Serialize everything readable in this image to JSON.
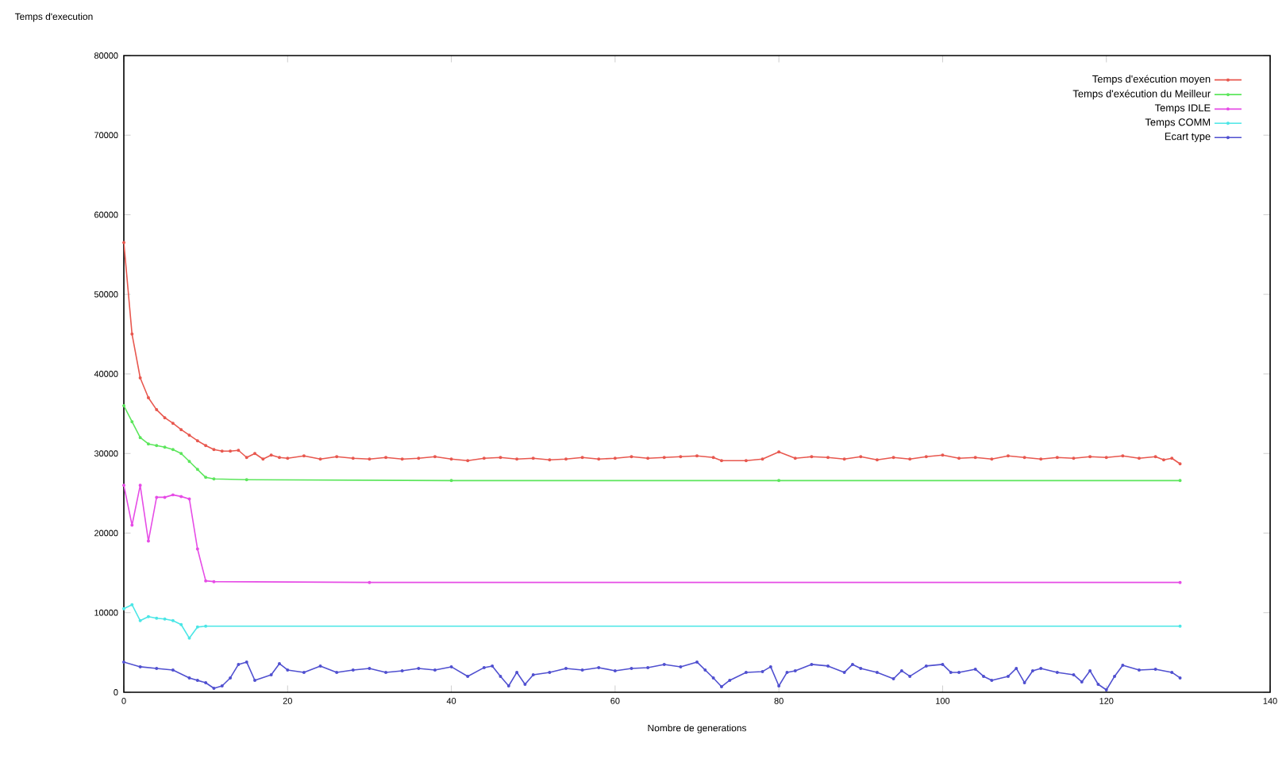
{
  "chart_data": {
    "type": "line",
    "ylabel": "Temps d'execution",
    "xlabel": "Nombre de generations",
    "xlim": [
      0,
      140
    ],
    "ylim": [
      0,
      80000
    ],
    "xticks": [
      0,
      20,
      40,
      60,
      80,
      100,
      120,
      140
    ],
    "yticks": [
      0,
      10000,
      20000,
      30000,
      40000,
      50000,
      60000,
      70000,
      80000
    ],
    "legend": "top right",
    "marker": "circle",
    "grid": false,
    "line_style": "solid",
    "series": [
      {
        "name": "Temps d'exécution moyen",
        "color": "#e8584f",
        "x": [
          0,
          1,
          2,
          3,
          4,
          5,
          6,
          7,
          8,
          9,
          10,
          11,
          12,
          13,
          14,
          15,
          16,
          17,
          18,
          19,
          20,
          22,
          24,
          26,
          28,
          30,
          32,
          34,
          36,
          38,
          40,
          42,
          44,
          46,
          48,
          50,
          52,
          54,
          56,
          58,
          60,
          62,
          64,
          66,
          68,
          70,
          72,
          73,
          76,
          78,
          80,
          82,
          84,
          86,
          88,
          90,
          92,
          94,
          96,
          98,
          100,
          102,
          104,
          106,
          108,
          110,
          112,
          114,
          116,
          118,
          120,
          122,
          124,
          126,
          127,
          128,
          129
        ],
        "values": [
          56500,
          45000,
          39500,
          37000,
          35500,
          34500,
          33800,
          33000,
          32300,
          31600,
          31000,
          30500,
          30300,
          30300,
          30400,
          29500,
          30000,
          29300,
          29800,
          29500,
          29400,
          29700,
          29300,
          29600,
          29400,
          29300,
          29500,
          29300,
          29400,
          29600,
          29300,
          29100,
          29400,
          29500,
          29300,
          29400,
          29200,
          29300,
          29500,
          29300,
          29400,
          29600,
          29400,
          29500,
          29600,
          29700,
          29500,
          29100,
          29100,
          29300,
          30200,
          29400,
          29600,
          29500,
          29300,
          29600,
          29200,
          29500,
          29300,
          29600,
          29800,
          29400,
          29500,
          29300,
          29700,
          29500,
          29300,
          29500,
          29400,
          29600,
          29500,
          29700,
          29400,
          29600,
          29200,
          29400,
          28700
        ]
      },
      {
        "name": "Temps d'exécution du Meilleur",
        "color": "#5ce65c",
        "x": [
          0,
          1,
          2,
          3,
          4,
          5,
          6,
          7,
          8,
          9,
          10,
          11,
          15,
          40,
          80,
          129
        ],
        "values": [
          36000,
          34000,
          32000,
          31200,
          31000,
          30800,
          30500,
          30000,
          29000,
          28000,
          27000,
          26800,
          26700,
          26600,
          26600,
          26600
        ]
      },
      {
        "name": "Temps IDLE",
        "color": "#e64ce6",
        "x": [
          0,
          1,
          2,
          3,
          4,
          5,
          6,
          7,
          8,
          9,
          10,
          11,
          30,
          129
        ],
        "values": [
          26000,
          21000,
          26000,
          19000,
          24500,
          24500,
          24800,
          24600,
          24300,
          18000,
          14000,
          13900,
          13800,
          13800
        ]
      },
      {
        "name": "Temps COMM",
        "color": "#4ce6e6",
        "x": [
          0,
          1,
          2,
          3,
          4,
          5,
          6,
          7,
          8,
          9,
          10,
          129
        ],
        "values": [
          10500,
          11000,
          9000,
          9500,
          9300,
          9200,
          9000,
          8500,
          6800,
          8200,
          8300,
          8300
        ]
      },
      {
        "name": "Ecart type",
        "color": "#5050d0",
        "x": [
          0,
          2,
          4,
          6,
          8,
          9,
          10,
          11,
          12,
          13,
          14,
          15,
          16,
          18,
          19,
          20,
          22,
          24,
          26,
          28,
          30,
          32,
          34,
          36,
          38,
          40,
          42,
          44,
          45,
          46,
          47,
          48,
          49,
          50,
          52,
          54,
          56,
          58,
          60,
          62,
          64,
          66,
          68,
          70,
          71,
          72,
          73,
          74,
          76,
          78,
          79,
          80,
          81,
          82,
          84,
          86,
          88,
          89,
          90,
          92,
          94,
          95,
          96,
          98,
          100,
          101,
          102,
          104,
          105,
          106,
          108,
          109,
          110,
          111,
          112,
          114,
          116,
          117,
          118,
          119,
          120,
          121,
          122,
          124,
          126,
          128,
          129
        ],
        "values": [
          3800,
          3200,
          3000,
          2800,
          1800,
          1500,
          1200,
          500,
          800,
          1800,
          3500,
          3800,
          1500,
          2200,
          3600,
          2800,
          2500,
          3300,
          2500,
          2800,
          3000,
          2500,
          2700,
          3000,
          2800,
          3200,
          2000,
          3100,
          3300,
          2000,
          800,
          2500,
          1000,
          2200,
          2500,
          3000,
          2800,
          3100,
          2700,
          3000,
          3100,
          3500,
          3200,
          3800,
          2800,
          1800,
          700,
          1500,
          2500,
          2600,
          3200,
          800,
          2500,
          2700,
          3500,
          3300,
          2500,
          3500,
          3000,
          2500,
          1700,
          2700,
          2000,
          3300,
          3500,
          2500,
          2500,
          2900,
          2000,
          1500,
          2000,
          3000,
          1200,
          2700,
          3000,
          2500,
          2200,
          1300,
          2700,
          1000,
          300,
          2000,
          3400,
          2800,
          2900,
          2500,
          1800
        ]
      }
    ]
  }
}
